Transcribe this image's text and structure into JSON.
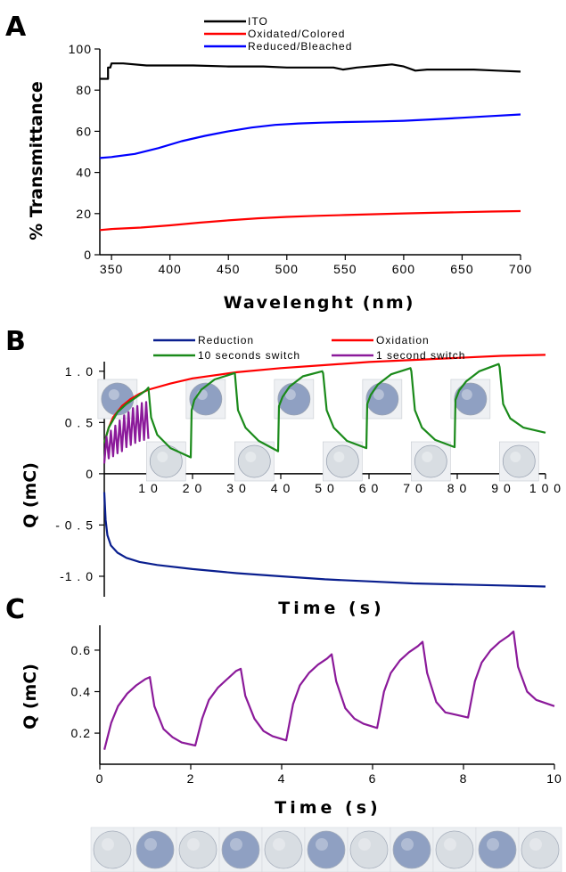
{
  "chart_data": [
    {
      "panel": "A",
      "type": "line",
      "xlabel": "Wavelenght (nm)",
      "ylabel": "% Transmittance",
      "xlim": [
        340,
        700
      ],
      "ylim": [
        0,
        100
      ],
      "xticks": [
        350,
        400,
        450,
        500,
        550,
        600,
        650,
        700
      ],
      "yticks": [
        0,
        20,
        40,
        60,
        80,
        100
      ],
      "legend_position": "top-center",
      "series": [
        {
          "name": "ITO",
          "color": "#000000",
          "x": [
            340,
            347,
            347,
            349,
            350,
            352,
            360,
            380,
            400,
            420,
            450,
            480,
            500,
            520,
            540,
            548,
            560,
            580,
            590,
            600,
            610,
            620,
            640,
            660,
            680,
            700
          ],
          "y": [
            85.5,
            85.5,
            91,
            91,
            93,
            93,
            93,
            92,
            92,
            92,
            91.5,
            91.5,
            91,
            91,
            91,
            90,
            91,
            92,
            92.5,
            91.5,
            89.5,
            90,
            90,
            90,
            89.5,
            89
          ]
        },
        {
          "name": "Oxidated/Colored",
          "color": "#ff0000",
          "x": [
            340,
            350,
            375,
            400,
            425,
            450,
            475,
            500,
            525,
            550,
            575,
            600,
            625,
            650,
            675,
            700
          ],
          "y": [
            12,
            12.5,
            13.2,
            14.3,
            15.6,
            16.7,
            17.7,
            18.4,
            18.9,
            19.3,
            19.7,
            20.1,
            20.4,
            20.7,
            21,
            21.2
          ]
        },
        {
          "name": "Reduced/Bleached",
          "color": "#0000ff",
          "x": [
            340,
            350,
            370,
            390,
            410,
            430,
            450,
            470,
            490,
            510,
            530,
            550,
            580,
            600,
            625,
            650,
            675,
            700
          ],
          "y": [
            47,
            47.5,
            49,
            51.8,
            55.2,
            57.8,
            60,
            61.8,
            63.1,
            63.8,
            64.2,
            64.5,
            64.8,
            65.1,
            65.8,
            66.6,
            67.4,
            68.2
          ]
        }
      ]
    },
    {
      "panel": "B",
      "type": "line",
      "xlabel": "Time (s)",
      "ylabel": "Q (mC)",
      "xlim": [
        0,
        100
      ],
      "ylim": [
        -1.2,
        1.25
      ],
      "xticks": [
        10,
        20,
        30,
        40,
        50,
        60,
        70,
        80,
        90,
        100
      ],
      "yticks": [
        -1.0,
        -0.5,
        0,
        0.5,
        1.0
      ],
      "ytick_labels": [
        "-1 . 0",
        "- 0 . 5",
        "0",
        "0 . 5",
        "1 . 0"
      ],
      "xtick_labels": [
        "1 0",
        "2 0",
        "3 0",
        "4 0",
        "5 0",
        "6 0",
        "7 0",
        "8 0",
        "9 0",
        "1 0 0"
      ],
      "legend_position": "top",
      "series": [
        {
          "name": "Reduction",
          "color": "#0a1f8f",
          "x": [
            0,
            0.3,
            0.7,
            1.5,
            3,
            5,
            8,
            12,
            20,
            30,
            40,
            50,
            60,
            70,
            80,
            90,
            100
          ],
          "y": [
            -0.18,
            -0.45,
            -0.6,
            -0.7,
            -0.77,
            -0.82,
            -0.86,
            -0.89,
            -0.93,
            -0.97,
            -1.0,
            -1.03,
            -1.05,
            -1.07,
            -1.08,
            -1.09,
            -1.1
          ]
        },
        {
          "name": "Oxidation",
          "color": "#ff0000",
          "x": [
            0,
            1,
            2,
            4,
            6,
            8,
            10,
            15,
            20,
            30,
            40,
            50,
            60,
            70,
            80,
            90,
            100
          ],
          "y": [
            0.3,
            0.45,
            0.55,
            0.66,
            0.73,
            0.78,
            0.82,
            0.88,
            0.93,
            0.99,
            1.03,
            1.06,
            1.09,
            1.11,
            1.13,
            1.15,
            1.16
          ]
        },
        {
          "name": "10 seconds switch",
          "color": "#1a8a1a",
          "x": [
            0,
            1,
            3,
            5,
            7,
            9,
            9.6,
            10,
            10.6,
            12,
            15,
            19.6,
            19.8,
            20.4,
            22,
            25,
            29.4,
            29.6,
            30.3,
            32,
            35,
            39.4,
            39.6,
            40.4,
            42,
            45,
            49.4,
            49.6,
            50.4,
            52,
            55,
            59.4,
            59.6,
            60.4,
            62,
            65,
            69.4,
            69.6,
            70.4,
            72,
            75,
            79.4,
            79.6,
            80.4,
            82,
            85,
            89.4,
            89.6,
            90.4,
            92,
            95,
            100
          ],
          "y": [
            0.3,
            0.45,
            0.6,
            0.68,
            0.74,
            0.8,
            0.82,
            0.84,
            0.55,
            0.38,
            0.25,
            0.16,
            0.62,
            0.72,
            0.82,
            0.92,
            0.98,
            0.98,
            0.62,
            0.45,
            0.32,
            0.22,
            0.66,
            0.75,
            0.85,
            0.95,
            1.0,
            0.98,
            0.62,
            0.45,
            0.32,
            0.25,
            0.68,
            0.77,
            0.87,
            0.97,
            1.03,
            1.0,
            0.62,
            0.45,
            0.33,
            0.26,
            0.72,
            0.81,
            0.9,
            1.0,
            1.07,
            1.04,
            0.68,
            0.54,
            0.45,
            0.4
          ]
        },
        {
          "name": "1 second switch",
          "color": "#8b1a9a",
          "x": [
            0,
            0.5,
            1,
            1.5,
            2,
            2.5,
            3,
            3.5,
            4,
            4.5,
            5,
            5.5,
            6,
            6.5,
            7,
            7.5,
            8,
            8.5,
            9,
            9.5,
            10
          ],
          "y": [
            0.1,
            0.36,
            0.15,
            0.42,
            0.17,
            0.47,
            0.2,
            0.52,
            0.22,
            0.57,
            0.26,
            0.6,
            0.28,
            0.64,
            0.3,
            0.66,
            0.32,
            0.69,
            0.33,
            0.7,
            0.34
          ]
        }
      ]
    },
    {
      "panel": "C",
      "type": "line",
      "xlabel": "Time (s)",
      "ylabel": "Q (mC)",
      "xlim": [
        0,
        10
      ],
      "ylim": [
        0.05,
        0.72
      ],
      "xticks": [
        0,
        2,
        4,
        6,
        8,
        10
      ],
      "yticks": [
        0.2,
        0.4,
        0.6
      ],
      "series": [
        {
          "name": "",
          "color": "#8b1a9a",
          "x": [
            0.1,
            0.25,
            0.4,
            0.6,
            0.8,
            1.0,
            1.1,
            1.2,
            1.4,
            1.6,
            1.8,
            2.1,
            2.25,
            2.4,
            2.6,
            2.8,
            3.0,
            3.1,
            3.2,
            3.4,
            3.6,
            3.8,
            4.1,
            4.25,
            4.4,
            4.6,
            4.8,
            5.0,
            5.1,
            5.2,
            5.4,
            5.6,
            5.8,
            6.1,
            6.25,
            6.4,
            6.6,
            6.8,
            7.0,
            7.1,
            7.2,
            7.4,
            7.6,
            7.8,
            8.1,
            8.25,
            8.4,
            8.6,
            8.8,
            9.0,
            9.1,
            9.2,
            9.4,
            9.6,
            9.8,
            10.0
          ],
          "y": [
            0.12,
            0.25,
            0.33,
            0.39,
            0.43,
            0.46,
            0.47,
            0.33,
            0.22,
            0.18,
            0.155,
            0.14,
            0.27,
            0.36,
            0.42,
            0.46,
            0.5,
            0.51,
            0.38,
            0.27,
            0.21,
            0.185,
            0.165,
            0.34,
            0.43,
            0.49,
            0.53,
            0.56,
            0.58,
            0.45,
            0.32,
            0.27,
            0.245,
            0.225,
            0.4,
            0.49,
            0.55,
            0.59,
            0.62,
            0.64,
            0.49,
            0.35,
            0.3,
            0.29,
            0.275,
            0.45,
            0.54,
            0.6,
            0.64,
            0.67,
            0.69,
            0.52,
            0.4,
            0.36,
            0.345,
            0.33
          ]
        }
      ]
    }
  ],
  "labels": {
    "panel_a": "A",
    "panel_b": "B",
    "panel_c": "C"
  },
  "colors": {
    "disc_colored": "#8fa0c2",
    "disc_bleached": "#d8dde2"
  }
}
